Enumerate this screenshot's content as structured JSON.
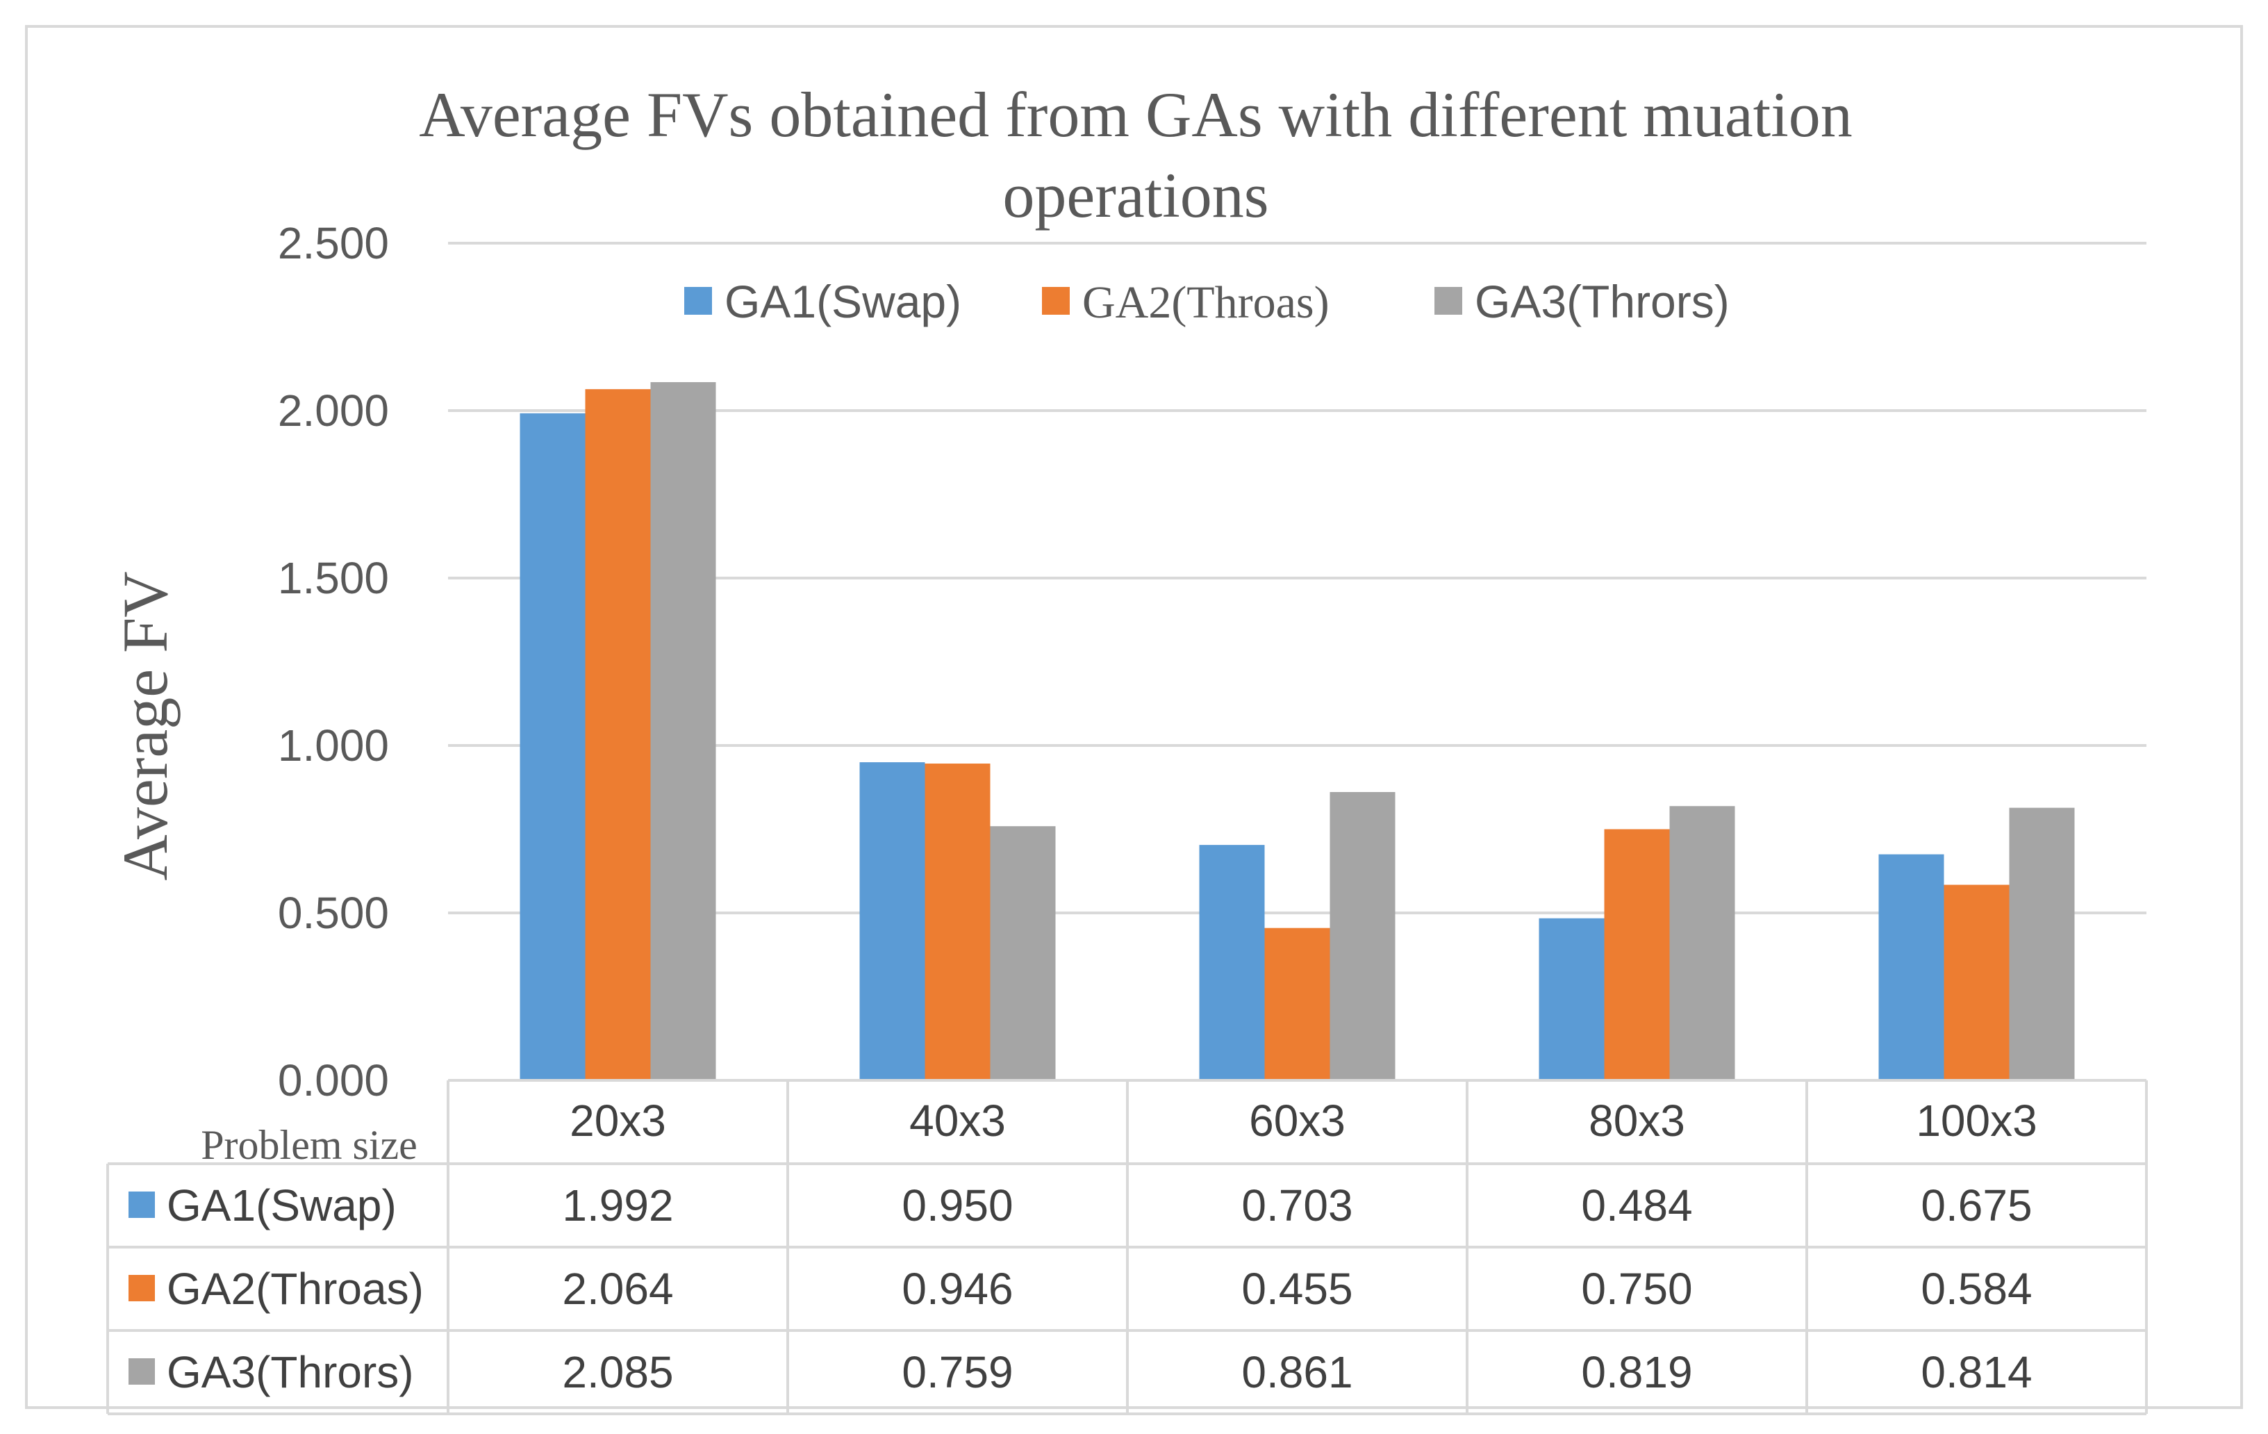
{
  "chart_data": {
    "type": "bar",
    "title": "Average FVs obtained from GAs with different muation operations",
    "title_lines": [
      "Average FVs obtained from GAs with different muation",
      "operations"
    ],
    "xlabel": "Problem size",
    "ylabel": "Average FV",
    "ylim": [
      0,
      2.5
    ],
    "yticks": [
      "0.000",
      "0.500",
      "1.000",
      "1.500",
      "2.000",
      "2.500"
    ],
    "grid": true,
    "legend_position": "top",
    "categories": [
      "20x3",
      "40x3",
      "60x3",
      "80x3",
      "100x3"
    ],
    "series": [
      {
        "name": "GA1(Swap)",
        "color": "#5B9BD5",
        "values": [
          1.992,
          0.95,
          0.703,
          0.484,
          0.675
        ],
        "labels": [
          "1.992",
          "0.950",
          "0.703",
          "0.484",
          "0.675"
        ]
      },
      {
        "name": "GA2(Throas)",
        "color": "#ED7D31",
        "values": [
          2.064,
          0.946,
          0.455,
          0.75,
          0.584
        ],
        "labels": [
          "2.064",
          "0.946",
          "0.455",
          "0.750",
          "0.584"
        ]
      },
      {
        "name": "GA3(Thrors)",
        "color": "#A5A5A5",
        "values": [
          2.085,
          0.759,
          0.861,
          0.819,
          0.814
        ],
        "labels": [
          "2.085",
          "0.759",
          "0.861",
          "0.819",
          "0.814"
        ]
      }
    ]
  }
}
